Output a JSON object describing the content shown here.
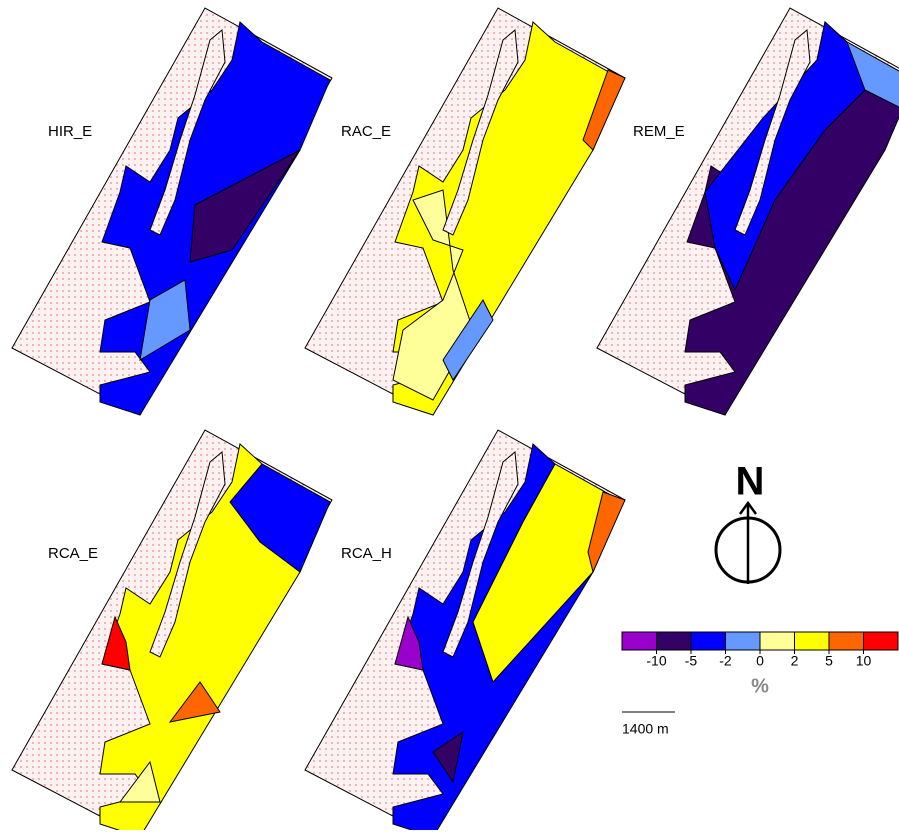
{
  "panels": [
    "HIR_E",
    "RAC_E",
    "REM_E",
    "RCA_E",
    "RCA_H"
  ],
  "north": "N",
  "legend": {
    "ticks": [
      -10,
      -5,
      -2,
      0,
      2,
      5,
      10
    ],
    "colors": [
      "#9900cc",
      "#330066",
      "#0000ff",
      "#6699ff",
      "#ffff99",
      "#ffff00",
      "#ff6600",
      "#ff0000"
    ],
    "unit": "%"
  },
  "scale_bar": "1400 m"
}
